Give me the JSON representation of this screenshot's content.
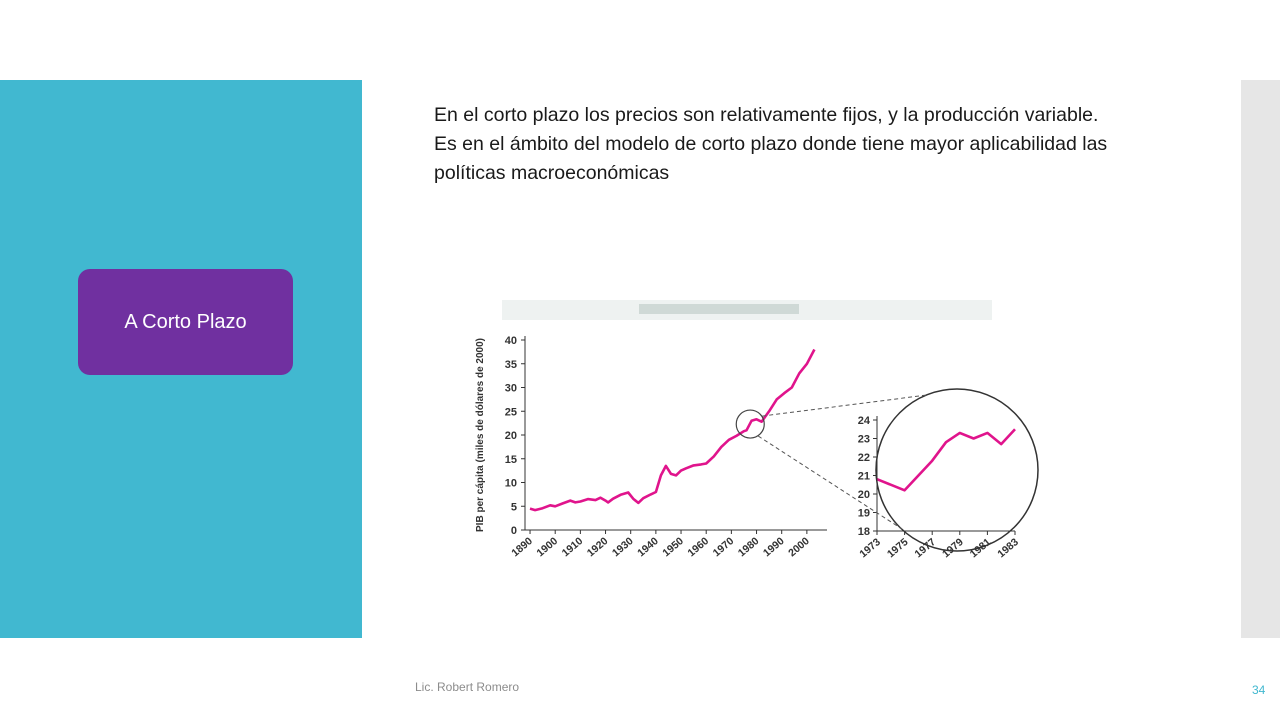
{
  "sidebar": {
    "section_label": "A Corto Plazo"
  },
  "content": {
    "paragraph_1": "En el corto plazo los precios son relativamente fijos, y la producción variable.",
    "paragraph_2": "Es en el ámbito del modelo de corto plazo donde tiene mayor aplicabilidad las políticas macroeconómicas"
  },
  "footer": {
    "author": "Lic. Robert Romero",
    "page_number": "34"
  },
  "colors": {
    "panel": "#41b8d0",
    "button": "#7030a0",
    "series": "#e0148c"
  },
  "chart_data": [
    {
      "type": "line",
      "title": "",
      "xlabel": "",
      "ylabel": "PIB per cápita (miles de dólares de 2000)",
      "x_ticks": [
        "1890",
        "1900",
        "1910",
        "1920",
        "1930",
        "1940",
        "1950",
        "1960",
        "1970",
        "1980",
        "1990",
        "2000"
      ],
      "y_ticks": [
        "0",
        "5",
        "10",
        "15",
        "20",
        "25",
        "30",
        "35",
        "40"
      ],
      "xlim": [
        1888,
        2008
      ],
      "ylim": [
        0,
        40
      ],
      "series": [
        {
          "x": [
            1890,
            1892,
            1895,
            1898,
            1900,
            1903,
            1906,
            1908,
            1910,
            1913,
            1916,
            1918,
            1920,
            1921,
            1923,
            1926,
            1929,
            1931,
            1933,
            1935,
            1938,
            1940,
            1942,
            1944,
            1946,
            1948,
            1950,
            1952,
            1955,
            1958,
            1960,
            1963,
            1966,
            1969,
            1972,
            1975,
            1976,
            1978,
            1980,
            1982,
            1985,
            1988,
            1991,
            1994,
            1997,
            2000,
            2003
          ],
          "y": [
            4.5,
            4.2,
            4.6,
            5.2,
            5.0,
            5.6,
            6.2,
            5.8,
            6.0,
            6.5,
            6.3,
            6.8,
            6.2,
            5.8,
            6.6,
            7.4,
            7.9,
            6.6,
            5.7,
            6.7,
            7.5,
            8.0,
            11.5,
            13.5,
            11.8,
            11.5,
            12.5,
            13.0,
            13.6,
            13.8,
            14.0,
            15.5,
            17.5,
            19.0,
            19.8,
            20.8,
            21.0,
            23.0,
            23.3,
            22.8,
            25.0,
            27.5,
            28.8,
            30.0,
            33.0,
            35.0,
            38.0
          ]
        }
      ]
    },
    {
      "type": "line",
      "title": "",
      "xlabel": "",
      "ylabel": "",
      "x_ticks": [
        "1973",
        "1975",
        "1977",
        "1979",
        "1981",
        "1983"
      ],
      "y_ticks": [
        "18",
        "19",
        "20",
        "21",
        "22",
        "23",
        "24"
      ],
      "xlim": [
        1973,
        1983
      ],
      "ylim": [
        18,
        24
      ],
      "series": [
        {
          "x": [
            1973,
            1975,
            1976,
            1977,
            1978,
            1979,
            1980,
            1981,
            1982,
            1983
          ],
          "y": [
            20.8,
            20.2,
            21.0,
            21.8,
            22.8,
            23.3,
            23.0,
            23.3,
            22.7,
            23.5
          ]
        }
      ]
    }
  ]
}
